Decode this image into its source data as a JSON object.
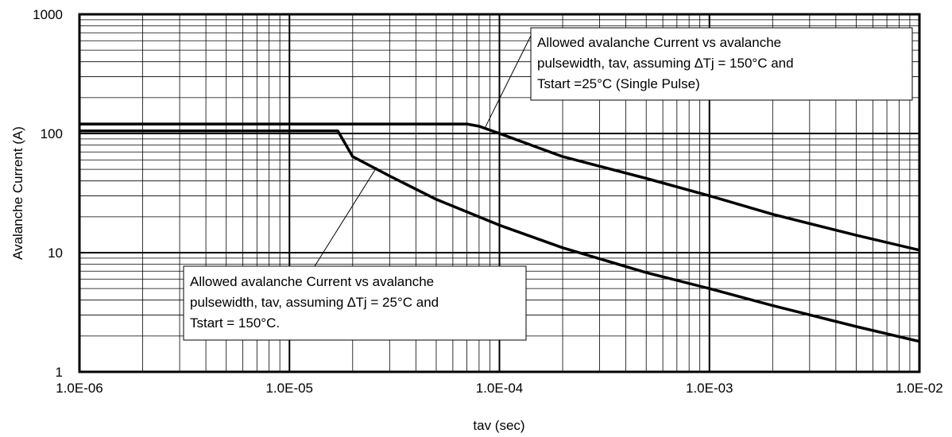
{
  "chart_data": {
    "type": "line",
    "xlabel": "tav (sec)",
    "ylabel": "Avalanche Current (A)",
    "xscale": "log",
    "yscale": "log",
    "xlim": [
      1e-06,
      0.01
    ],
    "ylim": [
      1,
      1000
    ],
    "x_tick_labels": [
      "1.0E-06",
      "1.0E-05",
      "1.0E-04",
      "1.0E-03",
      "1.0E-02"
    ],
    "y_tick_labels": [
      "1",
      "10",
      "100",
      "1000"
    ],
    "grid": "major and minor (log)",
    "series": [
      {
        "x": [
          1e-06,
          7e-05,
          8e-05,
          0.0001,
          0.0002,
          0.0005,
          0.001,
          0.002,
          0.005,
          0.01
        ],
        "y": [
          120,
          120,
          115,
          100,
          64,
          42,
          30,
          21,
          14,
          10.5
        ]
      },
      {
        "x": [
          1e-06,
          1.7e-05,
          2e-05,
          3e-05,
          5e-05,
          0.0001,
          0.0002,
          0.0005,
          0.001,
          0.002,
          0.005,
          0.01
        ],
        "y": [
          105,
          105,
          64,
          44,
          28,
          17,
          11,
          6.8,
          5,
          3.6,
          2.4,
          1.8
        ]
      }
    ],
    "annotations": [
      {
        "lines": [
          "Allowed avalanche Current vs avalanche",
          "pulsewidth, tav, assuming ∆Tj = 150°C and",
          "Tstart =25°C (Single Pulse)"
        ],
        "points_to": [
          8.5e-05,
          110
        ]
      },
      {
        "lines": [
          "Allowed avalanche Current vs avalanche",
          "pulsewidth, tav, assuming ∆Tj = 25°C and",
          "Tstart = 150°C."
        ],
        "points_to": [
          2.6e-05,
          52
        ]
      }
    ]
  }
}
